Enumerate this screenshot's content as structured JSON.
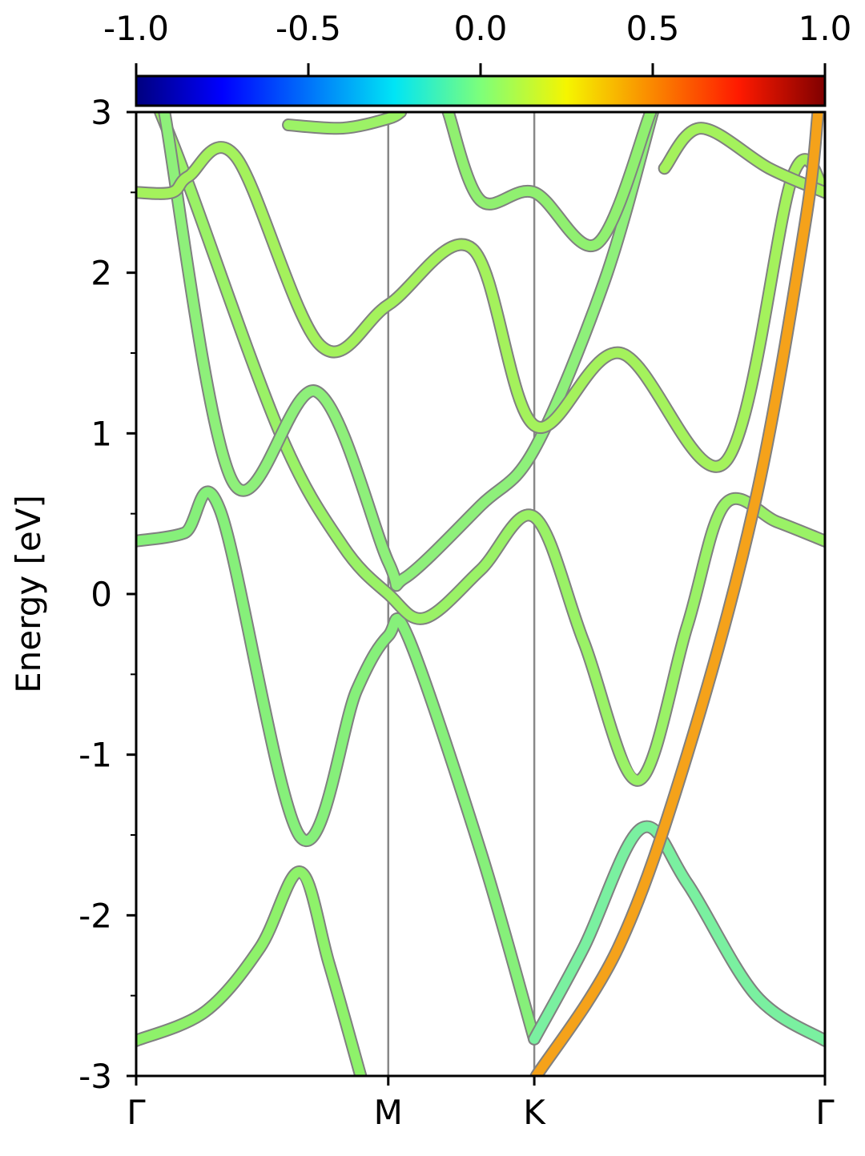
{
  "chart_data": {
    "type": "line",
    "ylabel": "Energy [eV]",
    "xlim": [
      0,
      1
    ],
    "ylim": [
      -3,
      3
    ],
    "xticks": [
      {
        "value": 0,
        "label": "Γ"
      },
      {
        "value": 0.366,
        "label": "M"
      },
      {
        "value": 0.578,
        "label": "K"
      },
      {
        "value": 1,
        "label": "Γ"
      }
    ],
    "yticks": [
      -3,
      -2,
      -1,
      0,
      1,
      2,
      3
    ],
    "yminorticks": [
      -2.5,
      -1.5,
      -0.5,
      0.5,
      1.5,
      2.5
    ],
    "xgrid": true,
    "clim": [
      -1,
      1
    ],
    "cticks": [
      {
        "value": -1,
        "label": "-1.0"
      },
      {
        "value": -0.5,
        "label": "-0.5"
      },
      {
        "value": 0,
        "label": "0.0"
      },
      {
        "value": 0.5,
        "label": "0.5"
      },
      {
        "value": 1,
        "label": "1.0"
      }
    ],
    "series": [
      {
        "color": "#8ef26a",
        "x": [
          0,
          0.1,
          0.18,
          0.238,
          0.28,
          0.326
        ],
        "values": [
          -2.78,
          -2.6,
          -2.2,
          -1.73,
          -2.3,
          -3.0
        ]
      },
      {
        "color": "#86f07a",
        "x": [
          0,
          0.07,
          0.122,
          0.238,
          0.32,
          0.366,
          0.395,
          0.5,
          0.578
        ],
        "values": [
          0.33,
          0.38,
          0.52,
          -1.51,
          -0.6,
          -0.26,
          -0.27,
          -1.6,
          -2.77
        ]
      },
      {
        "color": "#7af0a0",
        "x": [
          0.578,
          0.65,
          0.733,
          0.8,
          0.9,
          1
        ],
        "values": [
          -2.77,
          -2.2,
          -1.46,
          -1.8,
          -2.5,
          -2.78
        ]
      },
      {
        "color": "#9af266",
        "x": [
          0.035,
          0.076,
          0.209,
          0.3,
          0.366,
          0.419,
          0.5,
          0.578,
          0.65,
          0.729,
          0.8,
          0.855,
          0.93,
          1
        ],
        "values": [
          3.0,
          2.55,
          1.0,
          0.3,
          0.0,
          -0.15,
          0.15,
          0.48,
          -0.3,
          -1.16,
          -0.2,
          0.56,
          0.45,
          0.33
        ]
      },
      {
        "color": "#8ef07a",
        "x": [
          0.041,
          0.14,
          0.262,
          0.366,
          0.39,
          0.5,
          0.578,
          0.68,
          0.75
        ],
        "values": [
          3.0,
          0.7,
          1.26,
          0.2,
          0.1,
          0.55,
          0.9,
          1.95,
          3.0
        ]
      },
      {
        "color": "#a4f25c",
        "x": [
          0,
          0.052,
          0.076,
          0.145,
          0.267,
          0.366,
          0.488,
          0.578,
          0.703,
          0.855,
          0.953,
          1
        ],
        "values": [
          2.5,
          2.5,
          2.6,
          2.72,
          1.55,
          1.8,
          2.15,
          1.05,
          1.5,
          0.82,
          2.6,
          2.5
        ]
      },
      {
        "color": "#9cf266",
        "x": [
          0.221,
          0.3,
          0.366,
          0.384
        ],
        "values": [
          2.92,
          2.9,
          2.96,
          3.0
        ]
      },
      {
        "color": "#90f070",
        "x": [
          0.453,
          0.5,
          0.578,
          0.669,
          0.747
        ],
        "values": [
          3.0,
          2.45,
          2.5,
          2.18,
          3.0
        ]
      },
      {
        "color": "#a4f25c",
        "x": [
          0.767,
          0.82,
          0.919,
          1
        ],
        "values": [
          2.65,
          2.9,
          2.65,
          2.5
        ]
      },
      {
        "color": "#f5a21a",
        "x": [
          0.581,
          0.7,
          0.8,
          0.9,
          0.971,
          0.99
        ],
        "values": [
          -3.0,
          -2.2,
          -1.0,
          0.6,
          2.3,
          3.0
        ]
      }
    ]
  }
}
